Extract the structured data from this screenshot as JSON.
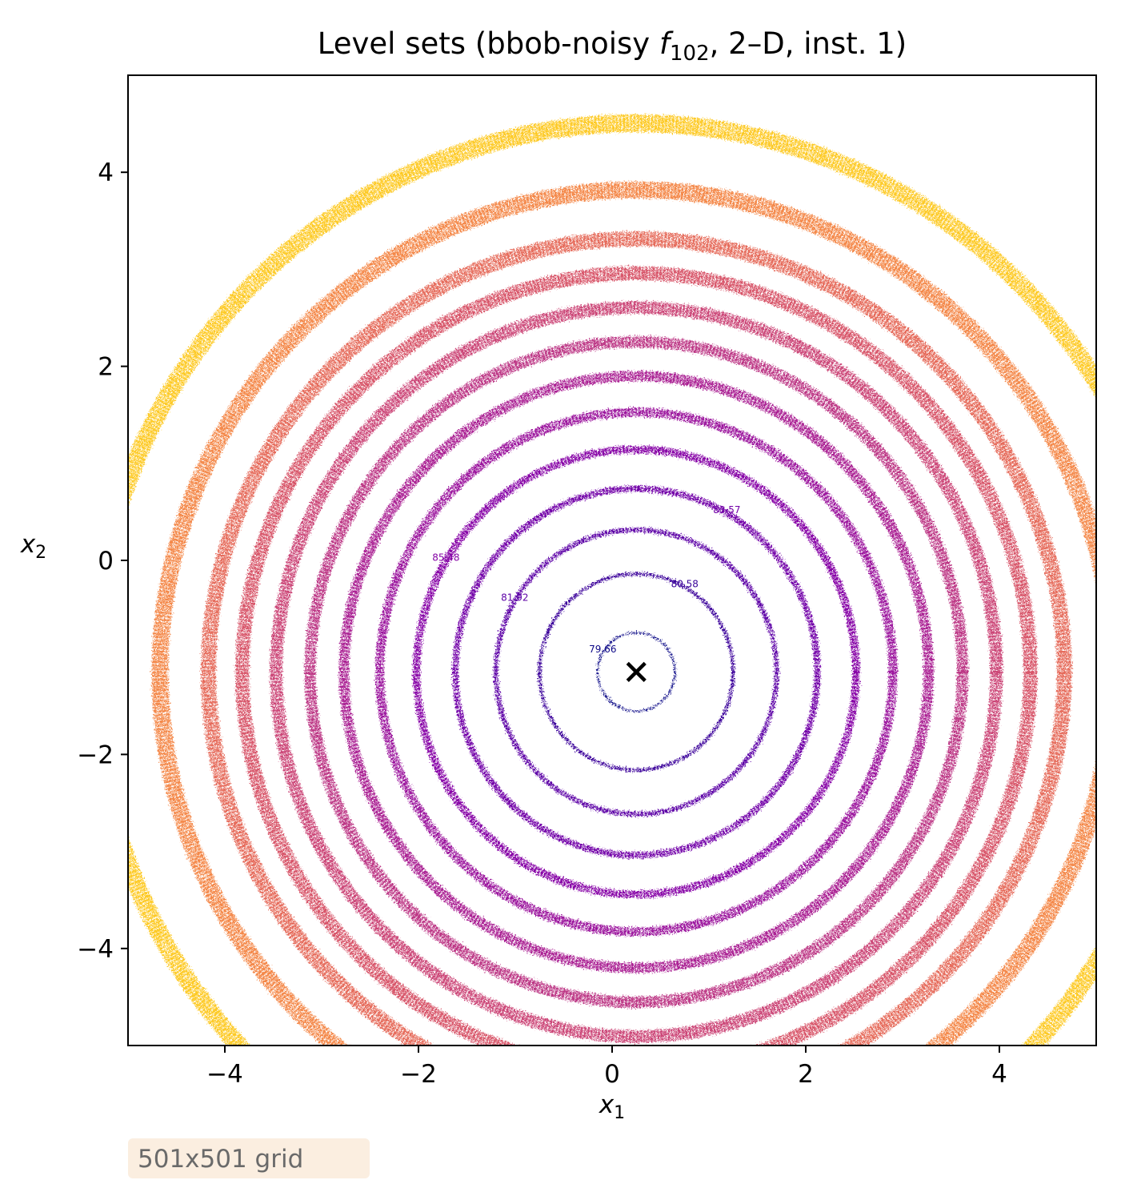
{
  "chart_data": {
    "type": "contour",
    "title": {
      "prefix": "Level sets (bbob-noisy ",
      "fn_symbol": "f",
      "fn_subscript": "102",
      "suffix": ", 2–D, inst. 1)"
    },
    "xlabel": {
      "base": "x",
      "sub": "1"
    },
    "ylabel": {
      "base": "x",
      "sub": "2"
    },
    "xlim": [
      -5,
      5
    ],
    "ylim": [
      -5,
      5
    ],
    "xticks": [
      -4,
      -2,
      0,
      2,
      4
    ],
    "yticks": [
      -4,
      -2,
      0,
      2,
      4
    ],
    "xtick_labels": [
      "−4",
      "−2",
      "0",
      "2",
      "4"
    ],
    "ytick_labels": [
      "−4",
      "−2",
      "0",
      "2",
      "4"
    ],
    "grid": false,
    "colormap": "plasma",
    "optimum": {
      "x": 0.25,
      "y": -1.15,
      "marker": "x"
    },
    "levels": [
      {
        "radius": 0.4,
        "color": "#0d0887",
        "label": "79.66"
      },
      {
        "radius": 1.0,
        "color": "#3a049a",
        "label": "80.58"
      },
      {
        "radius": 1.45,
        "color": "#5c01a6",
        "label": "81.92"
      },
      {
        "radius": 1.87,
        "color": "#7201a8",
        "label": "83.57"
      },
      {
        "radius": 2.27,
        "color": "#8606a6",
        "label": "85.48"
      },
      {
        "radius": 2.65,
        "color": "#9c179e",
        "label": ""
      },
      {
        "radius": 3.02,
        "color": "#ab2494",
        "label": ""
      },
      {
        "radius": 3.37,
        "color": "#bd3786",
        "label": ""
      },
      {
        "radius": 3.72,
        "color": "#cc4778",
        "label": ""
      },
      {
        "radius": 4.07,
        "color": "#d8576b",
        "label": ""
      },
      {
        "radius": 4.42,
        "color": "#e66c5c",
        "label": ""
      },
      {
        "radius": 4.92,
        "color": "#f48849",
        "label": ""
      },
      {
        "radius": 5.6,
        "color": "#fdca26",
        "label": ""
      }
    ],
    "annotation": "501x501 grid",
    "annotation_bg": "#fbeee0"
  }
}
